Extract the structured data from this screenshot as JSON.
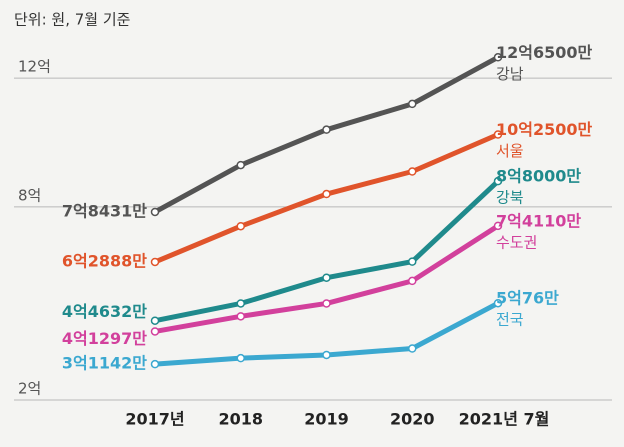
{
  "chart_data": {
    "type": "line",
    "subtitle": "단위: 원, 7월 기준",
    "categories": [
      "2017년",
      "2018",
      "2019",
      "2020",
      "2021년 7월"
    ],
    "ylim": [
      2,
      13
    ],
    "yticks": [
      {
        "value": 2,
        "label": "2억"
      },
      {
        "value": 8,
        "label": "8억"
      },
      {
        "value": 12,
        "label": "12억"
      }
    ],
    "grid": true,
    "series": [
      {
        "name": "강남",
        "color": "#545454",
        "values": [
          7.8431,
          9.3,
          10.4,
          11.2,
          12.65
        ],
        "value_labels": [
          "7억8431만",
          null,
          null,
          null,
          "12억6500만"
        ]
      },
      {
        "name": "서울",
        "color": "#e0542b",
        "values": [
          6.2888,
          7.4,
          8.4,
          9.1,
          10.25
        ],
        "value_labels": [
          "6억2888만",
          null,
          null,
          null,
          "10억2500만"
        ]
      },
      {
        "name": "강북",
        "color": "#1f8a8c",
        "values": [
          4.4632,
          5.0,
          5.8,
          6.3,
          8.8
        ],
        "value_labels": [
          "4억4632만",
          null,
          null,
          null,
          "8억8000만"
        ]
      },
      {
        "name": "수도권",
        "color": "#d2409c",
        "values": [
          4.1297,
          4.6,
          5.0,
          5.7,
          7.411
        ],
        "value_labels": [
          "4억1297만",
          null,
          null,
          null,
          "7억4110만"
        ]
      },
      {
        "name": "전국",
        "color": "#3ba8d0",
        "values": [
          3.1142,
          3.3,
          3.4,
          3.6,
          5.0076
        ],
        "value_labels": [
          "3억1142만",
          null,
          null,
          null,
          "5억76만"
        ]
      }
    ]
  }
}
